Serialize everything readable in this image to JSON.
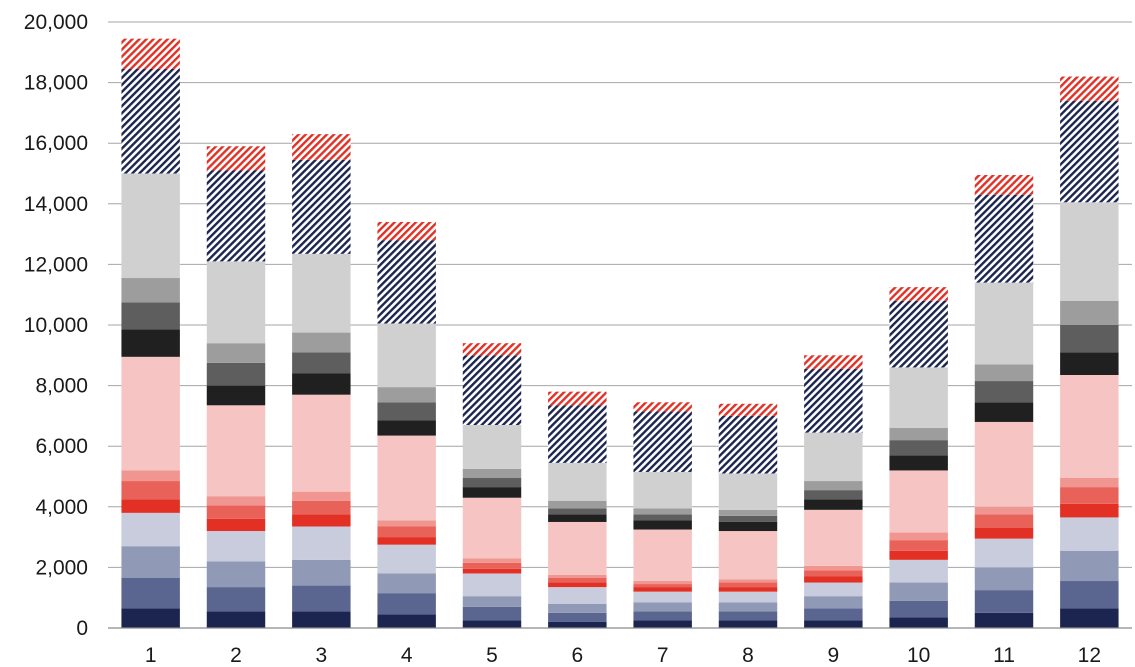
{
  "chart_data": {
    "type": "bar",
    "stacked": true,
    "title": "",
    "xlabel": "",
    "ylabel": "",
    "ylim": [
      0,
      20000
    ],
    "yticks": [
      "0",
      "2,000",
      "4,000",
      "6,000",
      "8,000",
      "10,000",
      "12,000",
      "14,000",
      "16,000",
      "18,000",
      "20,000"
    ],
    "grid": true,
    "legend": "none",
    "categories": [
      "1",
      "2",
      "3",
      "4",
      "5",
      "6",
      "7",
      "8",
      "9",
      "10",
      "11",
      "12"
    ],
    "series": [
      {
        "color": "#1b2550",
        "pattern": "solid",
        "values": [
          650,
          550,
          550,
          450,
          250,
          200,
          250,
          250,
          250,
          350,
          500,
          650
        ]
      },
      {
        "color": "#5a6590",
        "pattern": "solid",
        "values": [
          1000,
          800,
          850,
          700,
          450,
          300,
          300,
          300,
          400,
          550,
          750,
          900
        ]
      },
      {
        "color": "#9099b5",
        "pattern": "solid",
        "values": [
          1050,
          850,
          850,
          650,
          350,
          300,
          300,
          300,
          400,
          600,
          750,
          1000
        ]
      },
      {
        "color": "#c9ccdc",
        "pattern": "solid",
        "values": [
          1100,
          1000,
          1100,
          950,
          750,
          550,
          350,
          350,
          450,
          750,
          950,
          1100
        ]
      },
      {
        "color": "#e23024",
        "pattern": "solid",
        "values": [
          450,
          400,
          400,
          250,
          150,
          150,
          150,
          150,
          200,
          300,
          350,
          450
        ]
      },
      {
        "color": "#e8625a",
        "pattern": "solid",
        "values": [
          600,
          450,
          450,
          350,
          200,
          150,
          100,
          150,
          200,
          350,
          450,
          550
        ]
      },
      {
        "color": "#f0958f",
        "pattern": "solid",
        "values": [
          350,
          300,
          300,
          200,
          150,
          100,
          100,
          100,
          150,
          250,
          250,
          300
        ]
      },
      {
        "color": "#f6c4c3",
        "pattern": "solid",
        "values": [
          3750,
          3000,
          3200,
          2800,
          2000,
          1750,
          1700,
          1600,
          1850,
          2050,
          2800,
          3400
        ]
      },
      {
        "color": "#202020",
        "pattern": "solid",
        "values": [
          900,
          650,
          700,
          500,
          350,
          250,
          300,
          300,
          350,
          500,
          650,
          750
        ]
      },
      {
        "color": "#5e5e5e",
        "pattern": "solid",
        "values": [
          900,
          750,
          700,
          600,
          300,
          200,
          200,
          200,
          300,
          500,
          700,
          900
        ]
      },
      {
        "color": "#9d9d9d",
        "pattern": "solid",
        "values": [
          800,
          650,
          650,
          500,
          300,
          250,
          200,
          200,
          300,
          400,
          550,
          800
        ]
      },
      {
        "color": "#d0d0d0",
        "pattern": "solid",
        "values": [
          3450,
          2700,
          2600,
          2100,
          1450,
          1250,
          1200,
          1200,
          1600,
          2000,
          2700,
          3250
        ]
      },
      {
        "color": "#1b2550",
        "pattern": "hatch",
        "values": [
          3450,
          3000,
          3100,
          2750,
          2300,
          1900,
          2000,
          1900,
          2100,
          2200,
          2900,
          3350
        ]
      },
      {
        "color": "#e23024",
        "pattern": "hatch",
        "values": [
          1000,
          800,
          850,
          600,
          400,
          450,
          300,
          400,
          450,
          450,
          650,
          800
        ]
      }
    ]
  }
}
